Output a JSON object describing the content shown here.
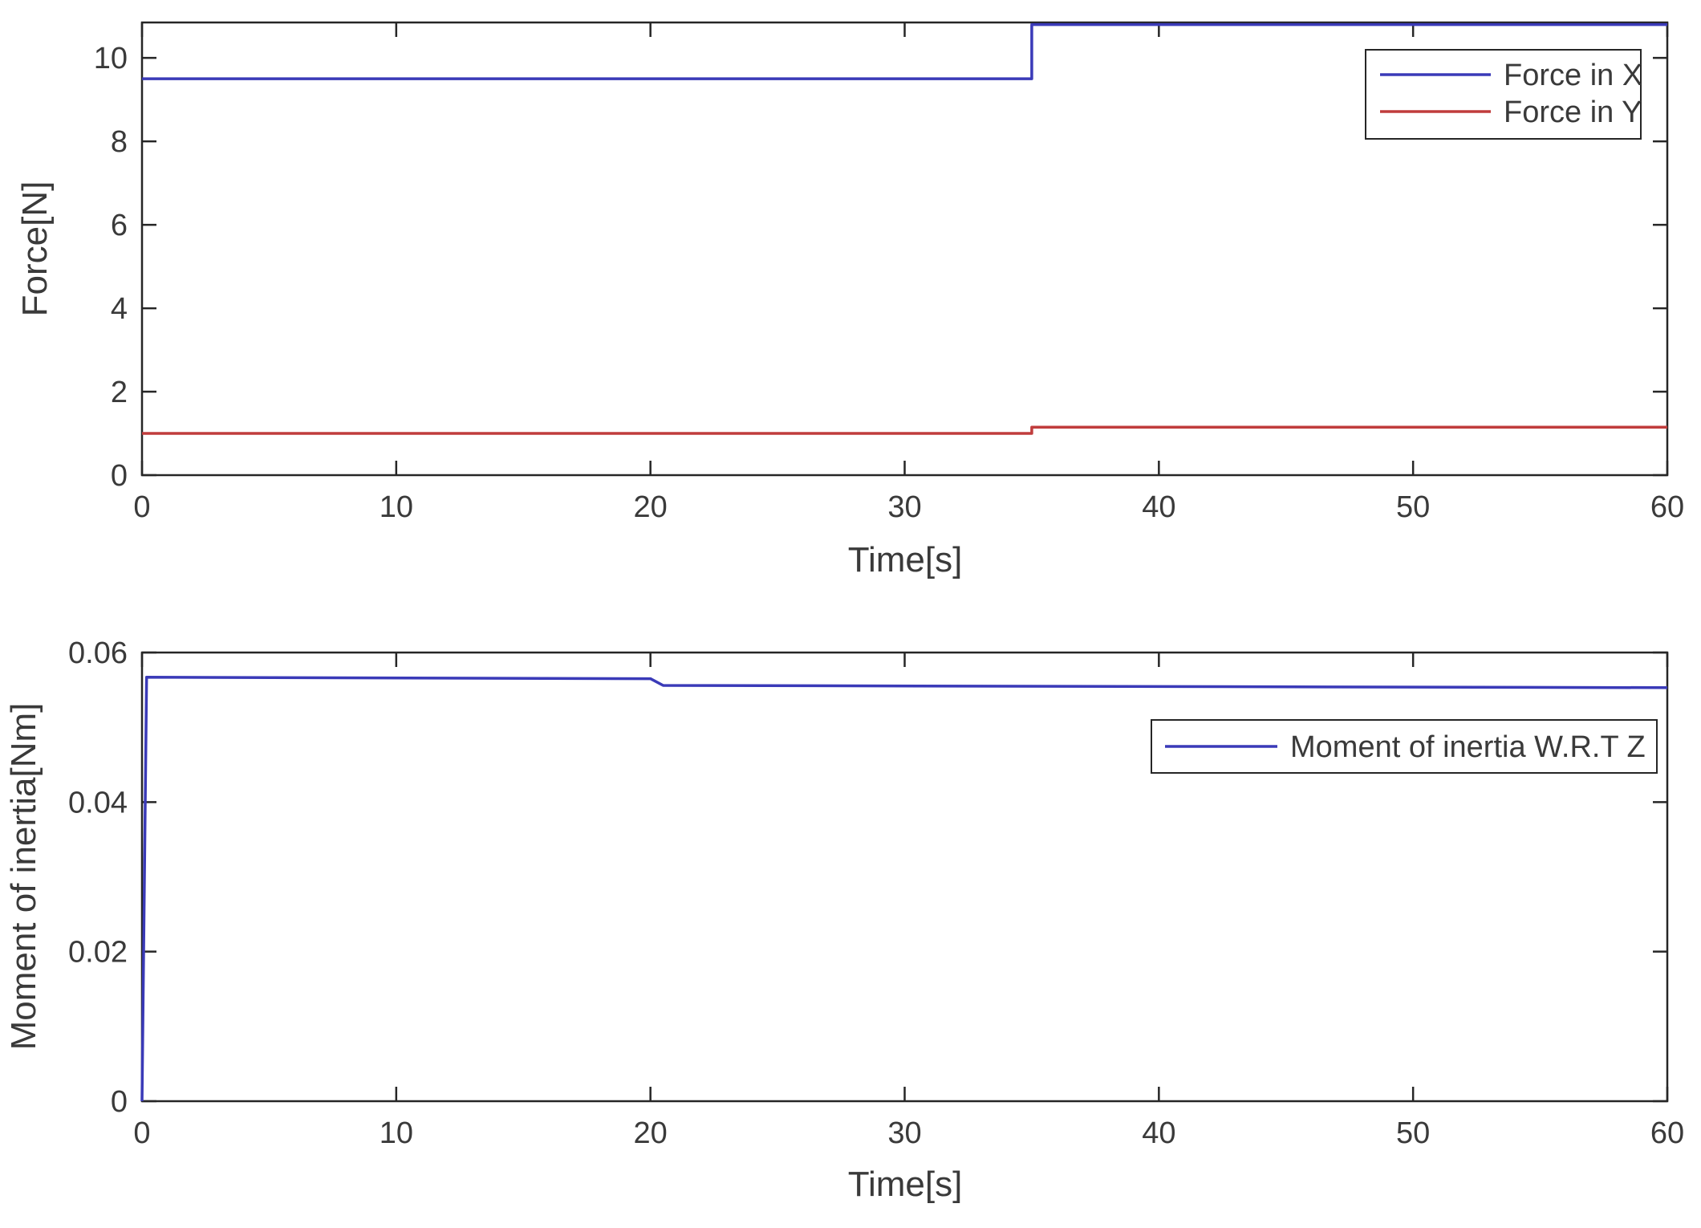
{
  "figure": {
    "background": "#ffffff",
    "axis_color": "#262626",
    "text_color": "#3a3a3a"
  },
  "chart_data": [
    {
      "type": "line",
      "title": "",
      "xlabel": "Time[s]",
      "ylabel": "Force[N]",
      "xlim": [
        0,
        60
      ],
      "ylim": [
        0,
        10.85
      ],
      "xticks": [
        0,
        10,
        20,
        30,
        40,
        50,
        60
      ],
      "xtick_labels": [
        "0",
        "10",
        "20",
        "30",
        "40",
        "50",
        "60"
      ],
      "yticks": [
        0,
        2,
        4,
        6,
        8,
        10
      ],
      "ytick_labels": [
        "0",
        "2",
        "4",
        "6",
        "8",
        "10"
      ],
      "grid": false,
      "legend_position": "top-right",
      "series": [
        {
          "name": "Force in X",
          "color": "#3a3ab8",
          "x": [
            0,
            35,
            35,
            60
          ],
          "y": [
            9.5,
            9.5,
            10.8,
            10.8
          ]
        },
        {
          "name": "Force in Y",
          "color": "#c03c3c",
          "x": [
            0,
            35,
            35,
            60
          ],
          "y": [
            1.0,
            1.0,
            1.15,
            1.15
          ]
        }
      ]
    },
    {
      "type": "line",
      "title": "",
      "xlabel": "Time[s]",
      "ylabel": "Moment of inertia[Nm]",
      "xlim": [
        0,
        60
      ],
      "ylim": [
        0,
        0.06
      ],
      "xticks": [
        0,
        10,
        20,
        30,
        40,
        50,
        60
      ],
      "xtick_labels": [
        "0",
        "10",
        "20",
        "30",
        "40",
        "50",
        "60"
      ],
      "yticks": [
        0,
        0.02,
        0.04,
        0.06
      ],
      "ytick_labels": [
        "0",
        "0.02",
        "0.04",
        "0.06"
      ],
      "grid": false,
      "legend_position": "middle-right",
      "series": [
        {
          "name": "Moment of inertia W.R.T Z",
          "color": "#3a3ab8",
          "x": [
            0,
            0.18,
            20,
            20.5,
            60
          ],
          "y": [
            0,
            0.0567,
            0.0565,
            0.0556,
            0.0553
          ]
        }
      ]
    }
  ]
}
